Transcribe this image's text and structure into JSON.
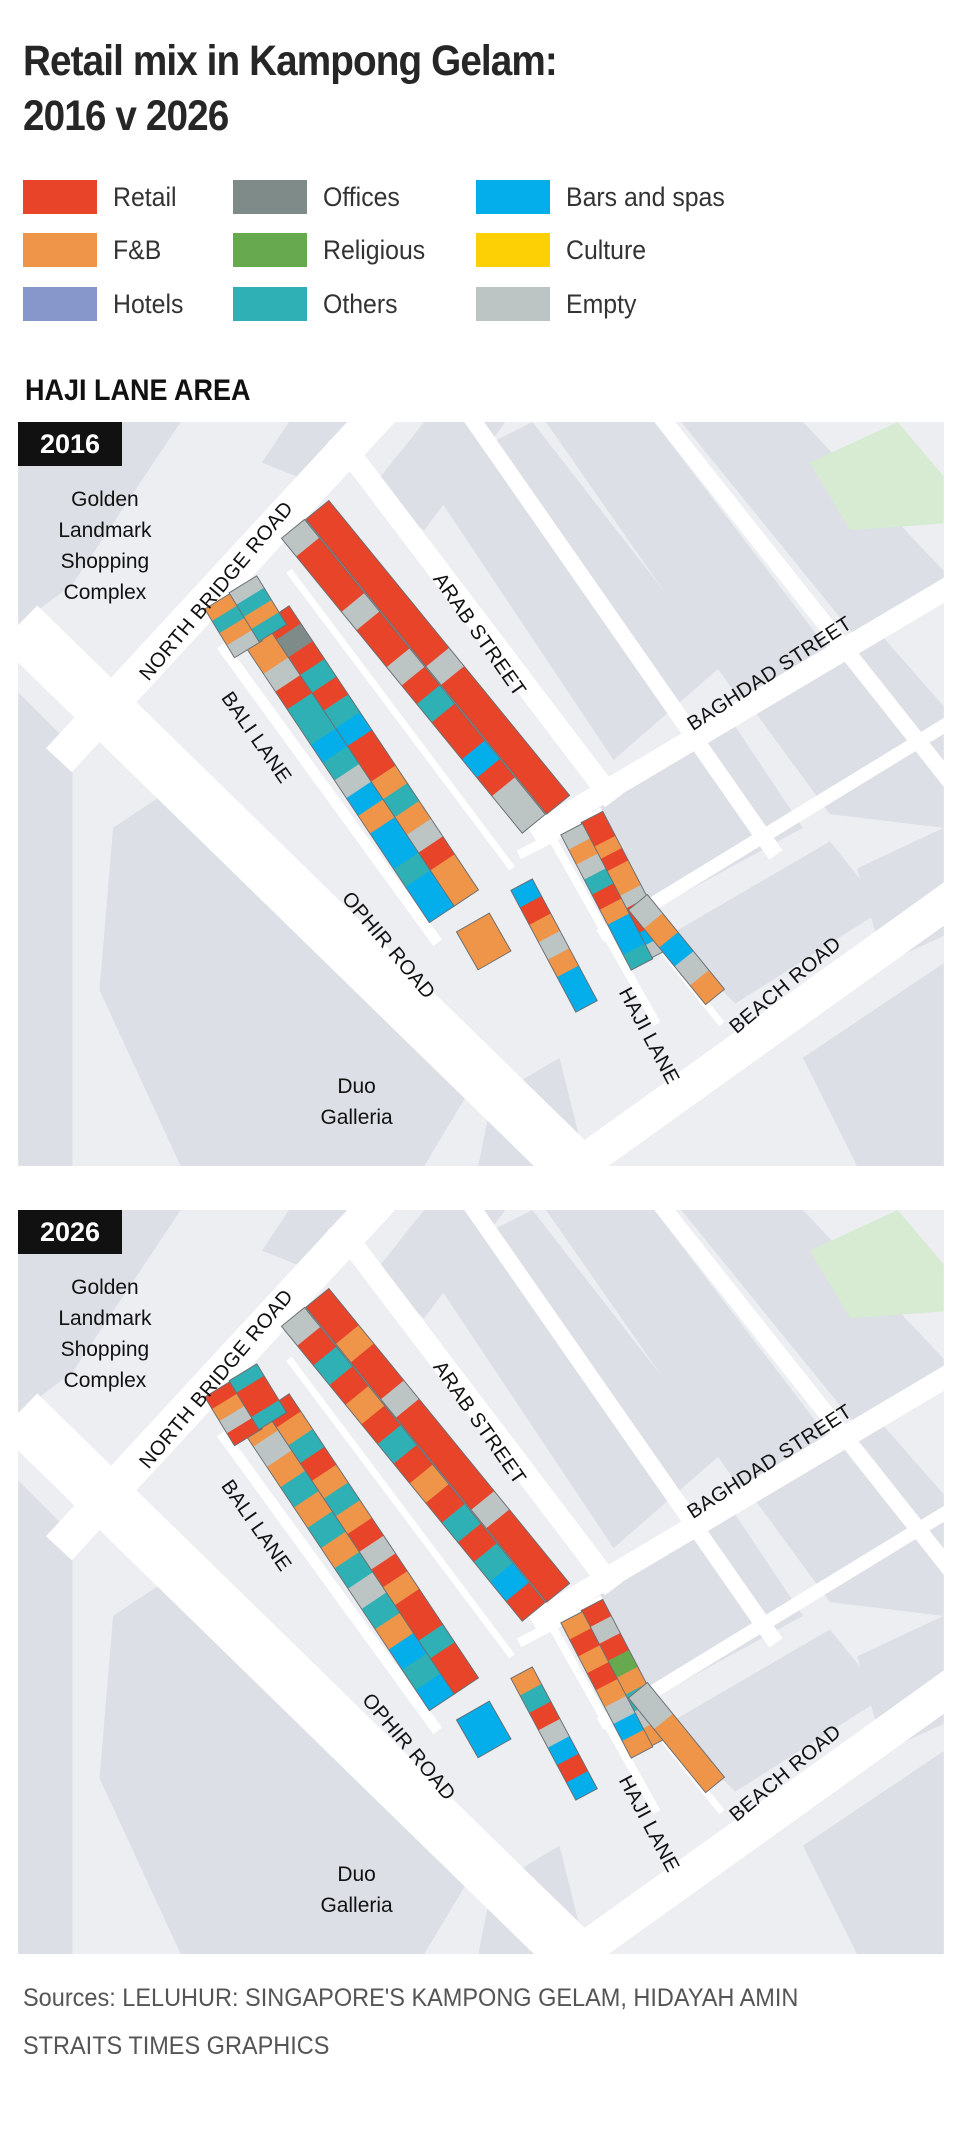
{
  "title": {
    "line1": "Retail mix in Kampong Gelam:",
    "line2": "2016 v 2026"
  },
  "legend": [
    {
      "key": "R",
      "label": "Retail",
      "color": "#e8442a"
    },
    {
      "key": "F",
      "label": "F&B",
      "color": "#ee9549"
    },
    {
      "key": "H",
      "label": "Hotels",
      "color": "#8796cb"
    },
    {
      "key": "O",
      "label": "Offices",
      "color": "#7f8b89"
    },
    {
      "key": "G",
      "label": "Religious",
      "color": "#67a94e"
    },
    {
      "key": "T",
      "label": "Others",
      "color": "#2fb0b4"
    },
    {
      "key": "B",
      "label": "Bars and spas",
      "color": "#03aeea"
    },
    {
      "key": "C",
      "label": "Culture",
      "color": "#fdd005"
    },
    {
      "key": "E",
      "label": "Empty",
      "color": "#bcc4c4"
    }
  ],
  "section_title": "HAJI LANE AREA",
  "map_labels": {
    "golden": [
      "Golden",
      "Landmark",
      "Shopping",
      "Complex"
    ],
    "north_bridge_road": "NORTH BRIDGE ROAD",
    "arab_street": "ARAB STREET",
    "baghdad_street": "BAGHDAD STREET",
    "bali_lane": "BALI LANE",
    "ophir_road": "OPHIR ROAD",
    "haji_lane": "HAJI LANE",
    "beach_road": "BEACH ROAD",
    "duo": [
      "Duo",
      "Galleria"
    ]
  },
  "panels": [
    {
      "year": "2016",
      "blocks": [
        {
          "units": [
            "R",
            "R",
            "R",
            "R",
            "R",
            "R",
            "R",
            "R",
            "E",
            "R",
            "R",
            "R",
            "R",
            "R",
            "R",
            "R"
          ]
        },
        {
          "units": [
            "E",
            "R",
            "R",
            "R",
            "E",
            "R",
            "R",
            "E",
            "R",
            "T",
            "R",
            "R",
            "B",
            "R",
            "E",
            "E"
          ]
        },
        {
          "units": [
            "R",
            "O",
            "R",
            "T",
            "R",
            "T",
            "B",
            "R",
            "R",
            "F",
            "T",
            "F",
            "E",
            "R",
            "F",
            "F"
          ]
        },
        {
          "units": [
            "F",
            "F",
            "E",
            "R",
            "T",
            "T",
            "B",
            "T",
            "E",
            "B",
            "F",
            "B",
            "B",
            "T",
            "B",
            "B"
          ]
        },
        {
          "units": [
            "F",
            "T",
            "F",
            "E"
          ]
        },
        {
          "units": [
            "E",
            "T",
            "F",
            "T"
          ]
        },
        {
          "units": [
            "R",
            "R",
            "F",
            "R",
            "F",
            "F",
            "E",
            "R",
            "R",
            "B",
            "E"
          ]
        },
        {
          "units": [
            "E",
            "F",
            "E",
            "T",
            "R",
            "F",
            "B",
            "B",
            "T"
          ]
        },
        {
          "units": [
            "E",
            "F",
            "B",
            "E",
            "F"
          ]
        },
        {
          "units": [
            "B",
            "R",
            "F",
            "E",
            "F",
            "B",
            "B"
          ]
        },
        {
          "units": [
            "F"
          ]
        }
      ]
    },
    {
      "year": "2026",
      "blocks": [
        {
          "units": [
            "R",
            "R",
            "F",
            "R",
            "R",
            "E",
            "R",
            "R",
            "R",
            "R",
            "R",
            "E",
            "R",
            "R",
            "R",
            "R"
          ]
        },
        {
          "units": [
            "E",
            "R",
            "T",
            "R",
            "F",
            "R",
            "T",
            "R",
            "F",
            "R",
            "T",
            "R",
            "T",
            "B",
            "R"
          ]
        },
        {
          "units": [
            "R",
            "F",
            "T",
            "R",
            "F",
            "T",
            "F",
            "R",
            "E",
            "R",
            "F",
            "R",
            "R",
            "T",
            "R",
            "R"
          ]
        },
        {
          "units": [
            "F",
            "E",
            "F",
            "T",
            "F",
            "T",
            "F",
            "T",
            "E",
            "T",
            "F",
            "B",
            "T",
            "B"
          ]
        },
        {
          "units": [
            "R",
            "F",
            "E",
            "R"
          ]
        },
        {
          "units": [
            "T",
            "R",
            "R",
            "T"
          ]
        },
        {
          "units": [
            "R",
            "E",
            "R",
            "G",
            "F",
            "T",
            "E",
            "F"
          ]
        },
        {
          "units": [
            "F",
            "R",
            "F",
            "R",
            "F",
            "E",
            "B",
            "F"
          ]
        },
        {
          "units": [
            "E",
            "F",
            "F"
          ]
        },
        {
          "units": [
            "F",
            "T",
            "R",
            "E",
            "B",
            "R",
            "B"
          ]
        },
        {
          "units": [
            "B"
          ]
        }
      ]
    }
  ],
  "sources": {
    "line1": "Sources: LELUHUR: SINGAPORE'S KAMPONG GELAM, HIDAYAH AMIN",
    "line2": "STRAITS TIMES GRAPHICS"
  }
}
